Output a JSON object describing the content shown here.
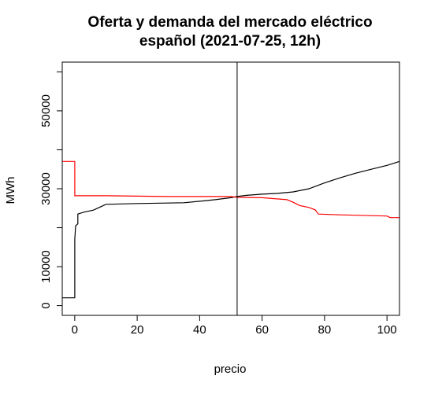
{
  "chart_data": {
    "type": "line",
    "title": "Oferta y demanda del mercado eléctrico",
    "subtitle": "español (2021-07-25, 12h)",
    "xlabel": "precio",
    "ylabel": "MWh",
    "xlim": [
      -4,
      104
    ],
    "ylim": [
      -2500,
      62500
    ],
    "xticks": [
      0,
      20,
      40,
      60,
      80,
      100
    ],
    "yticks": [
      0,
      10000,
      20000,
      30000,
      40000,
      50000,
      60000
    ],
    "ytick_labels": [
      "0",
      "10000",
      "",
      "30000",
      "",
      "50000",
      ""
    ],
    "grid": false,
    "equilibrium_price": 52,
    "series": [
      {
        "color": "#000000",
        "points": [
          [
            -4,
            2000
          ],
          [
            0,
            2000
          ],
          [
            0,
            17000
          ],
          [
            0.3,
            20500
          ],
          [
            1,
            21000
          ],
          [
            1,
            23500
          ],
          [
            3,
            24000
          ],
          [
            6,
            24500
          ],
          [
            10,
            26000
          ],
          [
            20,
            26200
          ],
          [
            35,
            26400
          ],
          [
            40,
            26800
          ],
          [
            45,
            27200
          ],
          [
            50,
            27700
          ],
          [
            52,
            28000
          ],
          [
            55,
            28300
          ],
          [
            60,
            28600
          ],
          [
            65,
            28800
          ],
          [
            70,
            29200
          ],
          [
            75,
            30000
          ],
          [
            80,
            31500
          ],
          [
            85,
            32800
          ],
          [
            90,
            34000
          ],
          [
            95,
            35000
          ],
          [
            100,
            36000
          ],
          [
            104,
            37000
          ]
        ]
      },
      {
        "color": "#ff0000",
        "points": [
          [
            -4,
            37000
          ],
          [
            0,
            37000
          ],
          [
            0,
            28200
          ],
          [
            10,
            28200
          ],
          [
            30,
            28000
          ],
          [
            50,
            28000
          ],
          [
            52,
            27800
          ],
          [
            60,
            27700
          ],
          [
            68,
            27200
          ],
          [
            70,
            26500
          ],
          [
            72,
            25700
          ],
          [
            75,
            25200
          ],
          [
            77,
            24600
          ],
          [
            78,
            23500
          ],
          [
            85,
            23300
          ],
          [
            95,
            23100
          ],
          [
            100,
            23000
          ],
          [
            101,
            22600
          ],
          [
            104,
            22600
          ]
        ]
      }
    ]
  }
}
